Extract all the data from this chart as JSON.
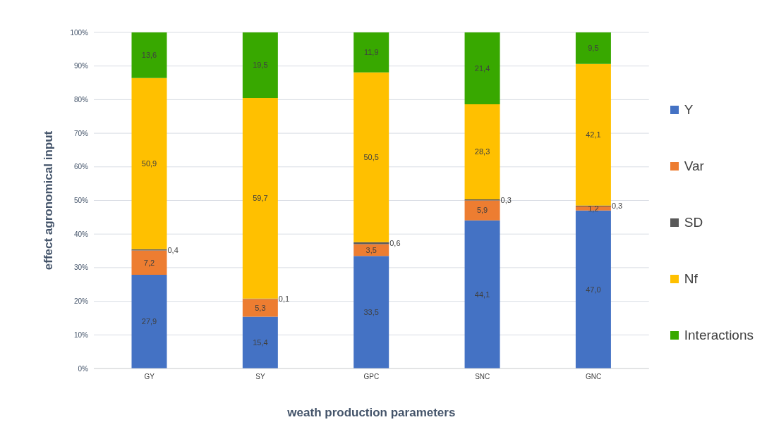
{
  "chart_data": {
    "type": "bar",
    "stacked": true,
    "xlabel": "weath production parameters",
    "ylabel": "effect agronomical input",
    "categories": [
      "GY",
      "SY",
      "GPC",
      "SNC",
      "GNC"
    ],
    "series": [
      {
        "name": "Y",
        "color": "#4472c4",
        "values": [
          27.9,
          15.4,
          33.5,
          44.1,
          47.0
        ],
        "value_labels": [
          "27,9",
          "15,4",
          "33,5",
          "44,1",
          "47,0"
        ]
      },
      {
        "name": "Var",
        "color": "#ed7d31",
        "values": [
          7.2,
          5.3,
          3.5,
          5.9,
          1.2
        ],
        "value_labels": [
          "7,2",
          "5,3",
          "3,5",
          "5,9",
          "1,2"
        ]
      },
      {
        "name": "SD",
        "color": "#595959",
        "values": [
          0.4,
          0.1,
          0.6,
          0.3,
          0.3
        ],
        "value_labels": [
          "0,4",
          "0,1",
          "0,6",
          "0,3",
          "0,3"
        ]
      },
      {
        "name": "Nf",
        "color": "#ffc000",
        "values": [
          50.9,
          59.7,
          50.5,
          28.3,
          42.1
        ],
        "value_labels": [
          "50,9",
          "59,7",
          "50,5",
          "28,3",
          "42,1"
        ]
      },
      {
        "name": "Interactions",
        "color": "#38a800",
        "values": [
          13.6,
          19.5,
          11.9,
          21.4,
          9.5
        ],
        "value_labels": [
          "13,6",
          "19,5",
          "11,9",
          "21,4",
          "9,5"
        ]
      }
    ],
    "ylim": [
      0,
      100
    ],
    "yticks": [
      {
        "value": 0,
        "label": "0%"
      },
      {
        "value": 10,
        "label": "10%"
      },
      {
        "value": 20,
        "label": "20%"
      },
      {
        "value": 30,
        "label": "30%"
      },
      {
        "value": 40,
        "label": "40%"
      },
      {
        "value": 50,
        "label": "50%"
      },
      {
        "value": 60,
        "label": "60%"
      },
      {
        "value": 70,
        "label": "70%"
      },
      {
        "value": 80,
        "label": "80%"
      },
      {
        "value": 90,
        "label": "90%"
      },
      {
        "value": 100,
        "label": "100%"
      }
    ],
    "grid": "y",
    "legend": "right"
  }
}
